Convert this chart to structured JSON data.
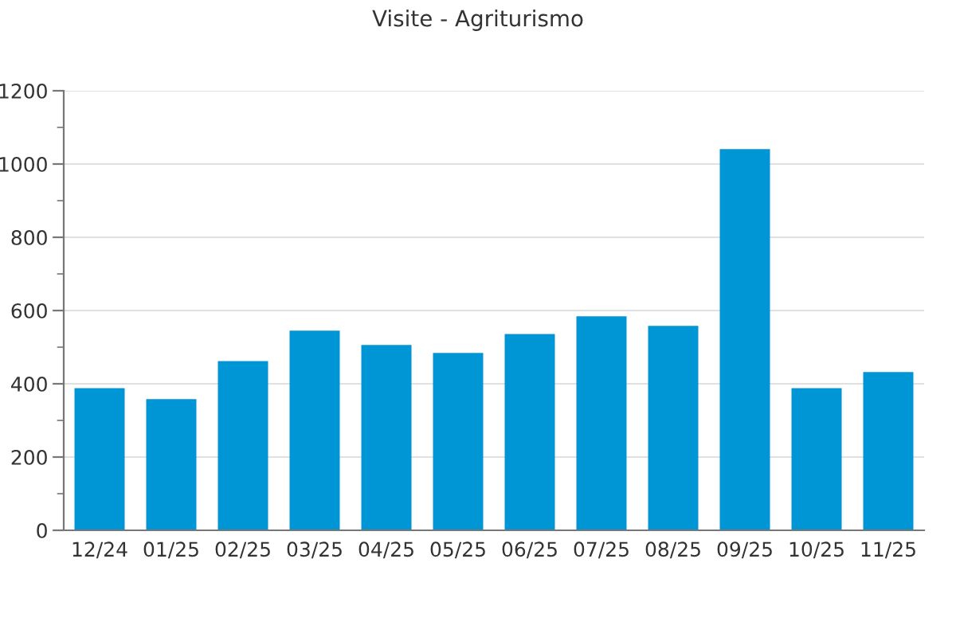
{
  "chart_data": {
    "type": "bar",
    "title": "Visite - Agriturismo",
    "categories": [
      "12/24",
      "01/25",
      "02/25",
      "03/25",
      "04/25",
      "05/25",
      "06/25",
      "07/25",
      "08/25",
      "09/25",
      "10/25",
      "11/25"
    ],
    "values": [
      388,
      358,
      462,
      545,
      506,
      484,
      536,
      584,
      558,
      1041,
      388,
      432
    ],
    "color": "#0096d6",
    "ylim": [
      0,
      1200
    ],
    "yticks": [
      0,
      200,
      400,
      600,
      800,
      1000,
      1200
    ],
    "grid": "y"
  }
}
